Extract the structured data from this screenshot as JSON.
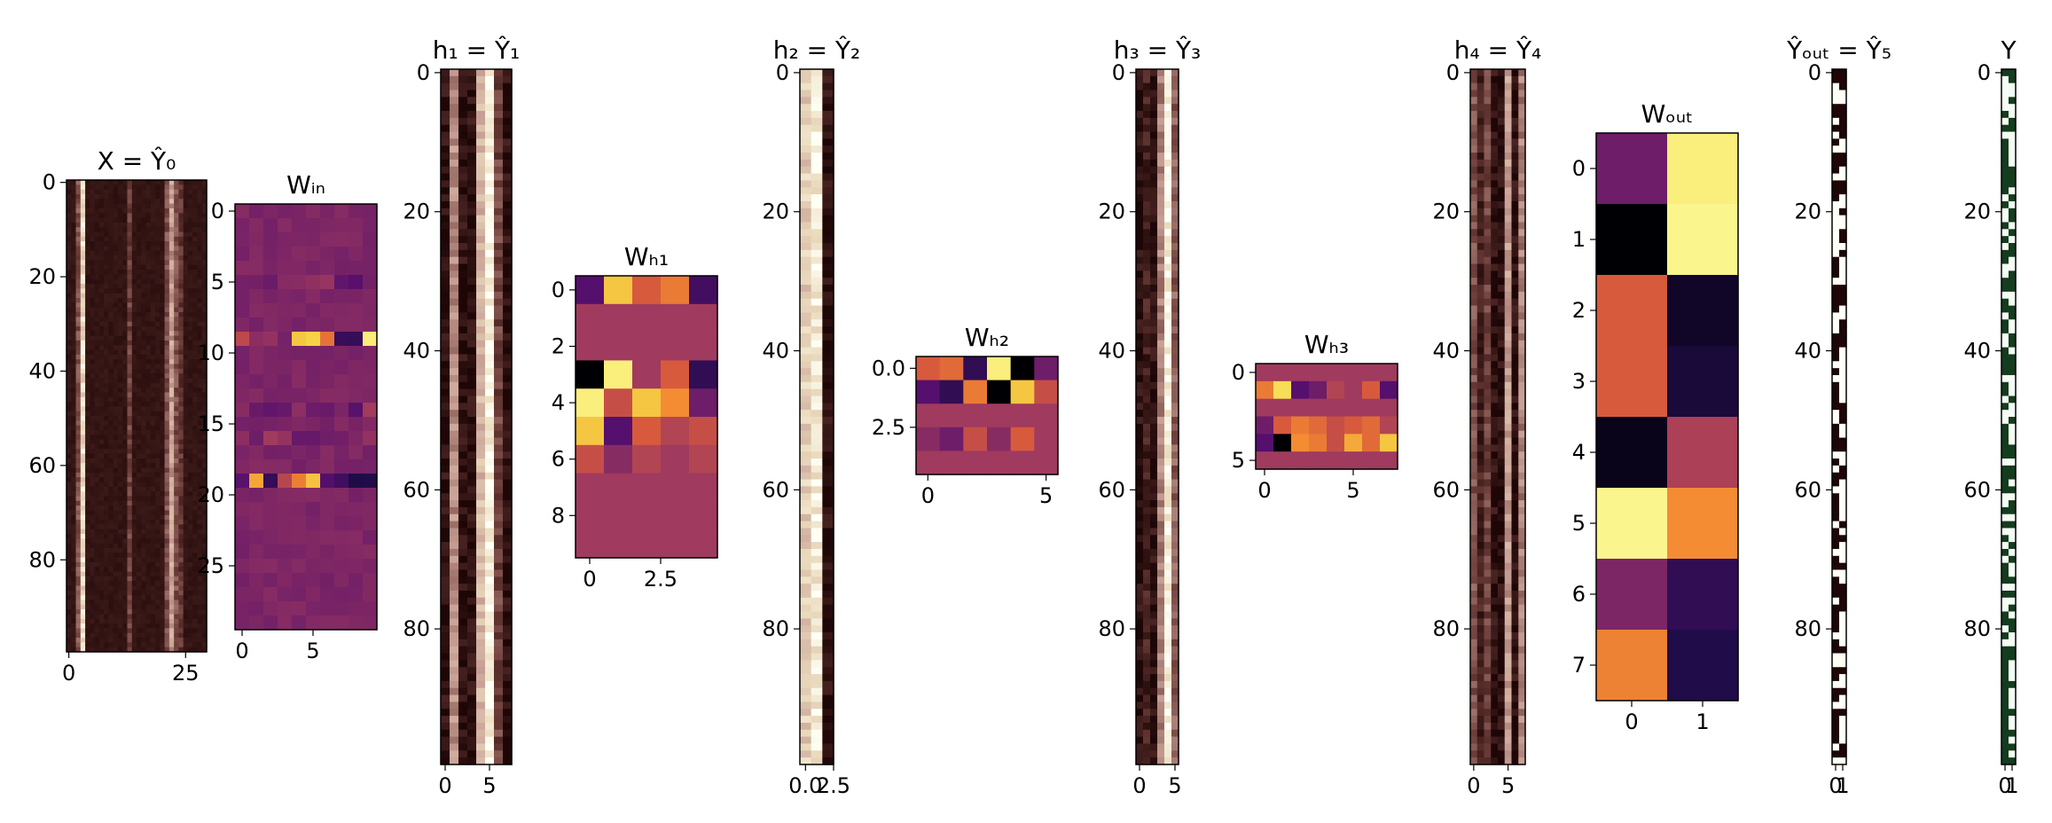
{
  "chart_data": [
    {
      "type": "heatmap",
      "title": "X = Ŷ₀",
      "rows": 100,
      "cols": 30,
      "xticks": [
        0,
        25
      ],
      "yticks": [
        0,
        20,
        40,
        60,
        80
      ],
      "colormap": "pink",
      "pattern": {
        "base": 0.05,
        "bright_cols": [
          {
            "col": 3,
            "v": 0.85
          },
          {
            "col": 22,
            "v": 0.6
          }
        ],
        "mid_cols": [
          {
            "col": 2,
            "v": 0.35
          },
          {
            "col": 13,
            "v": 0.3
          },
          {
            "col": 21,
            "v": 0.35
          },
          {
            "col": 23,
            "v": 0.35
          },
          {
            "col": 24,
            "v": 0.25
          }
        ]
      }
    },
    {
      "type": "heatmap",
      "title": "Wᵢₙ",
      "rows": 30,
      "cols": 10,
      "xticks": [
        0,
        5
      ],
      "yticks": [
        0,
        5,
        10,
        15,
        20,
        25
      ],
      "colormap": "inferno",
      "pattern": {
        "base": 0.38,
        "active_rows": [
          9,
          19
        ],
        "faint_rows": [
          5,
          14,
          16
        ]
      }
    },
    {
      "type": "heatmap",
      "title": "h₁ = Ŷ₁",
      "rows": 100,
      "cols": 8,
      "xticks": [
        0,
        5
      ],
      "yticks": [
        0,
        20,
        40,
        60,
        80
      ],
      "colormap": "pink",
      "pattern": {
        "base": 0.05,
        "col_values": [
          0.05,
          0.55,
          0.05,
          0.05,
          0.7,
          0.95,
          0.3,
          0.05
        ]
      }
    },
    {
      "type": "heatmap",
      "title": "Wₕ₁",
      "rows": 10,
      "cols": 5,
      "xticks": [
        0.0,
        2.5
      ],
      "yticks": [
        0,
        2,
        4,
        6,
        8
      ],
      "colormap": "inferno",
      "values": [
        [
          0.3,
          0.85,
          0.6,
          0.7,
          0.25
        ],
        [
          0.45,
          0.45,
          0.45,
          0.45,
          0.45
        ],
        [
          0.45,
          0.45,
          0.45,
          0.45,
          0.45
        ],
        [
          0.0,
          0.95,
          0.45,
          0.6,
          0.2
        ],
        [
          0.95,
          0.55,
          0.85,
          0.75,
          0.35
        ],
        [
          0.85,
          0.3,
          0.6,
          0.5,
          0.55
        ],
        [
          0.55,
          0.4,
          0.5,
          0.45,
          0.5
        ],
        [
          0.45,
          0.45,
          0.45,
          0.45,
          0.45
        ],
        [
          0.45,
          0.45,
          0.45,
          0.45,
          0.45
        ],
        [
          0.45,
          0.45,
          0.45,
          0.45,
          0.45
        ]
      ]
    },
    {
      "type": "heatmap",
      "title": "h₂ = Ŷ₂",
      "rows": 100,
      "cols": 3,
      "xticks": [
        0.0,
        2.5
      ],
      "xtick_text": [
        "0.0",
        "2.5"
      ],
      "yticks": [
        0,
        20,
        40,
        60,
        80
      ],
      "colormap": "pink",
      "pattern": {
        "base": 0.8,
        "col_values": [
          0.78,
          0.92,
          0.05
        ]
      }
    },
    {
      "type": "heatmap",
      "title": "Wₕ₂",
      "rows": 5,
      "cols": 6,
      "xticks": [
        0,
        5
      ],
      "yticks": [
        0.0,
        2.5
      ],
      "ytick_text": [
        "0.0",
        "2.5"
      ],
      "colormap": "inferno",
      "values": [
        [
          0.6,
          0.65,
          0.2,
          0.95,
          0.0,
          0.35
        ],
        [
          0.3,
          0.2,
          0.7,
          0.0,
          0.85,
          0.55
        ],
        [
          0.45,
          0.45,
          0.45,
          0.45,
          0.45,
          0.45
        ],
        [
          0.4,
          0.35,
          0.55,
          0.4,
          0.6,
          0.45
        ],
        [
          0.45,
          0.45,
          0.45,
          0.45,
          0.45,
          0.45
        ]
      ]
    },
    {
      "type": "heatmap",
      "title": "h₃ = Ŷ₃",
      "rows": 100,
      "cols": 6,
      "xticks": [
        0,
        5
      ],
      "yticks": [
        0,
        20,
        40,
        60,
        80
      ],
      "colormap": "pink",
      "pattern": {
        "base": 0.05,
        "col_values": [
          0.05,
          0.15,
          0.05,
          0.5,
          0.95,
          0.4
        ]
      }
    },
    {
      "type": "heatmap",
      "title": "Wₕ₃",
      "rows": 6,
      "cols": 8,
      "xticks": [
        0,
        5
      ],
      "yticks": [
        0,
        5
      ],
      "colormap": "inferno",
      "values": [
        [
          0.45,
          0.45,
          0.45,
          0.45,
          0.45,
          0.45,
          0.45,
          0.45
        ],
        [
          0.7,
          0.9,
          0.3,
          0.35,
          0.5,
          0.45,
          0.6,
          0.3
        ],
        [
          0.45,
          0.45,
          0.45,
          0.45,
          0.45,
          0.45,
          0.45,
          0.45
        ],
        [
          0.35,
          0.6,
          0.7,
          0.65,
          0.55,
          0.6,
          0.65,
          0.5
        ],
        [
          0.3,
          0.0,
          0.75,
          0.7,
          0.55,
          0.8,
          0.65,
          0.85
        ],
        [
          0.45,
          0.45,
          0.45,
          0.45,
          0.45,
          0.45,
          0.45,
          0.45
        ]
      ]
    },
    {
      "type": "heatmap",
      "title": "h₄ = Ŷ₄",
      "rows": 100,
      "cols": 8,
      "xticks": [
        0,
        5
      ],
      "yticks": [
        0,
        20,
        40,
        60,
        80
      ],
      "colormap": "pink",
      "pattern": {
        "base": 0.05,
        "col_values": [
          0.35,
          0.15,
          0.3,
          0.05,
          0.05,
          0.6,
          0.05,
          0.5
        ]
      }
    },
    {
      "type": "heatmap",
      "title": "Wₒᵤₜ",
      "rows": 8,
      "cols": 2,
      "xticks": [
        0,
        1
      ],
      "yticks": [
        0,
        1,
        2,
        3,
        4,
        5,
        6,
        7
      ],
      "colormap": "inferno",
      "values": [
        [
          0.35,
          0.95
        ],
        [
          0.0,
          0.97
        ],
        [
          0.6,
          0.08
        ],
        [
          0.6,
          0.12
        ],
        [
          0.05,
          0.48
        ],
        [
          0.97,
          0.75
        ],
        [
          0.38,
          0.2
        ],
        [
          0.72,
          0.15
        ]
      ]
    },
    {
      "type": "heatmap",
      "title": "Ŷₒᵤₜ = Ŷ₅",
      "rows": 100,
      "cols": 2,
      "xticks": [
        0,
        1
      ],
      "yticks": [
        0,
        20,
        40,
        60,
        80
      ],
      "colormap": "pink",
      "pattern": {
        "binary": true
      }
    },
    {
      "type": "heatmap",
      "title": "Y",
      "rows": 100,
      "cols": 2,
      "xticks": [
        0,
        1
      ],
      "yticks": [
        0,
        20,
        40,
        60,
        80
      ],
      "colormap": "greens",
      "pattern": {
        "binary": true
      }
    }
  ]
}
